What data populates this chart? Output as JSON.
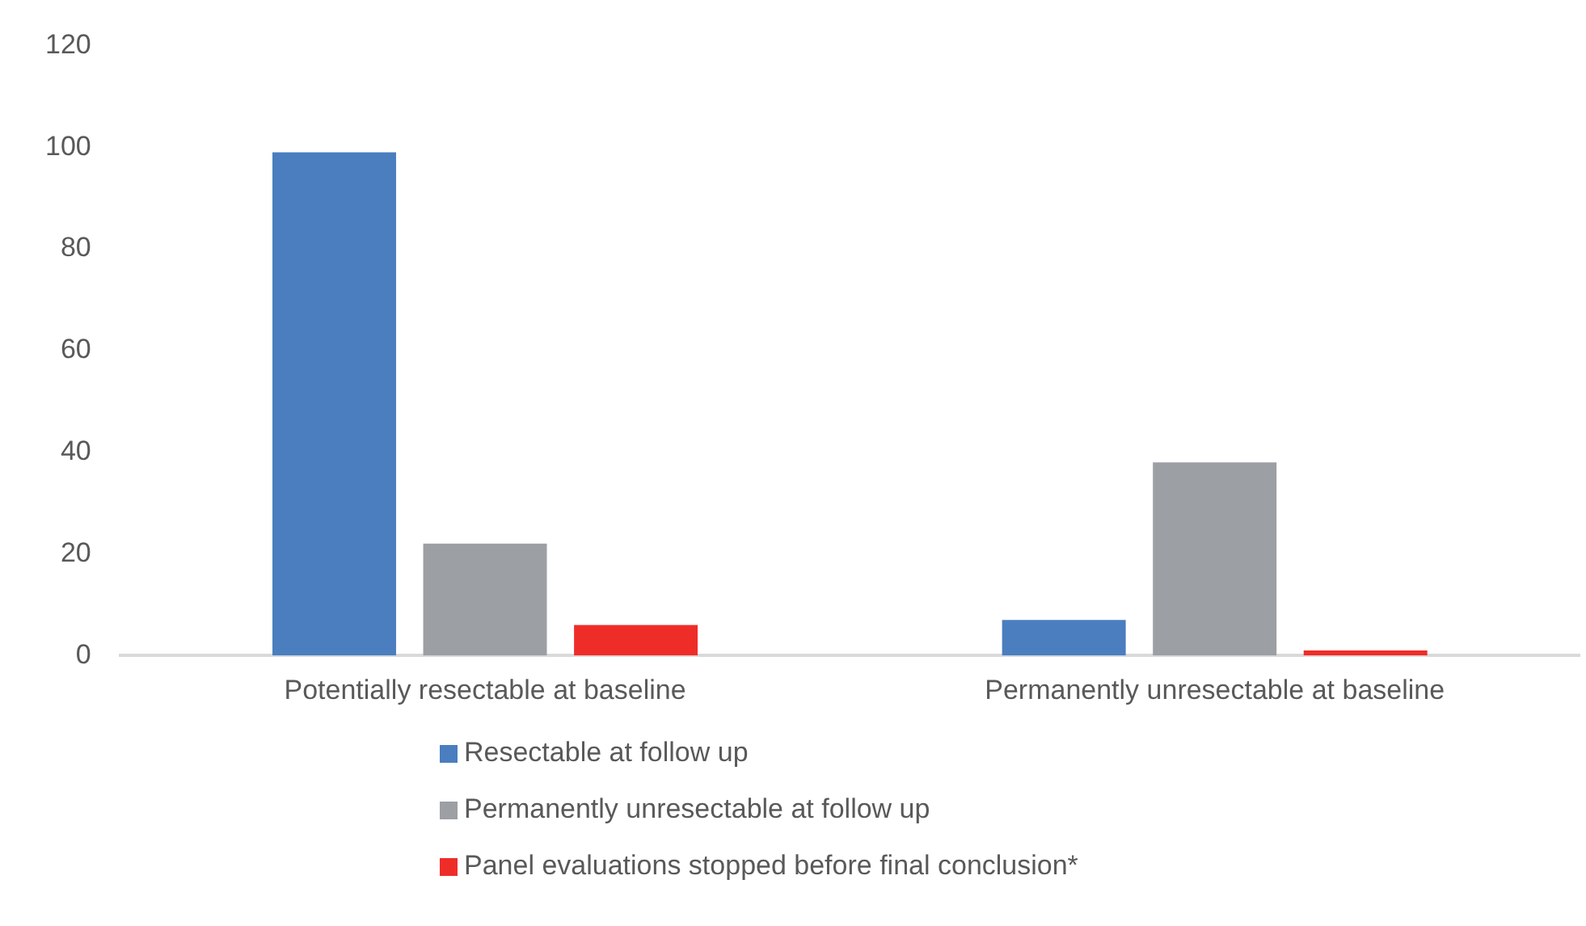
{
  "chart_data": {
    "type": "bar",
    "categories": [
      "Potentially resectable at baseline",
      "Permanently unresectable at baseline"
    ],
    "series": [
      {
        "name": "Resectable at follow up",
        "color": "#4a7ebf",
        "values": [
          99,
          7
        ]
      },
      {
        "name": "Permanently unresectable at follow up",
        "color": "#9c9fa3",
        "values": [
          22,
          38
        ]
      },
      {
        "name": "Panel evaluations stopped before final conclusion*",
        "color": "#ee2d29",
        "values": [
          6,
          1
        ]
      }
    ],
    "ylim": [
      0,
      120
    ],
    "yticks": [
      0,
      20,
      40,
      60,
      80,
      100,
      120
    ],
    "grid": false,
    "legend": "bottom"
  }
}
